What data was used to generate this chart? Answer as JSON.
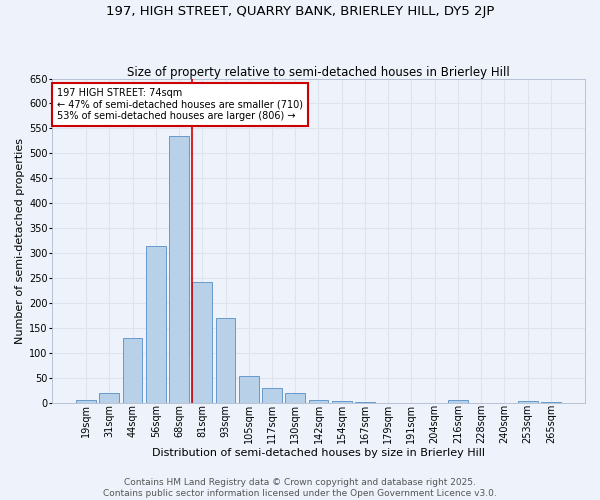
{
  "title": "197, HIGH STREET, QUARRY BANK, BRIERLEY HILL, DY5 2JP",
  "subtitle": "Size of property relative to semi-detached houses in Brierley Hill",
  "xlabel": "Distribution of semi-detached houses by size in Brierley Hill",
  "ylabel": "Number of semi-detached properties",
  "categories": [
    "19sqm",
    "31sqm",
    "44sqm",
    "56sqm",
    "68sqm",
    "81sqm",
    "93sqm",
    "105sqm",
    "117sqm",
    "130sqm",
    "142sqm",
    "154sqm",
    "167sqm",
    "179sqm",
    "191sqm",
    "204sqm",
    "216sqm",
    "228sqm",
    "240sqm",
    "253sqm",
    "265sqm"
  ],
  "values": [
    5,
    20,
    130,
    315,
    535,
    242,
    170,
    53,
    30,
    20,
    5,
    3,
    2,
    0,
    0,
    0,
    5,
    0,
    0,
    3,
    2
  ],
  "bar_color": "#b8d0e8",
  "bar_edge_color": "#6699cc",
  "grid_color": "#dde4f0",
  "background_color": "#edf2fb",
  "annotation_box_text": "197 HIGH STREET: 74sqm\n← 47% of semi-detached houses are smaller (710)\n53% of semi-detached houses are larger (806) →",
  "annotation_box_color": "#ffffff",
  "annotation_box_edge_color": "#cc0000",
  "vline_x": 4.57,
  "vline_color": "#cc0000",
  "ylim": [
    0,
    650
  ],
  "yticks": [
    0,
    50,
    100,
    150,
    200,
    250,
    300,
    350,
    400,
    450,
    500,
    550,
    600,
    650
  ],
  "footer_text": "Contains HM Land Registry data © Crown copyright and database right 2025.\nContains public sector information licensed under the Open Government Licence v3.0.",
  "title_fontsize": 9.5,
  "subtitle_fontsize": 8.5,
  "axis_label_fontsize": 8,
  "tick_fontsize": 7,
  "annotation_fontsize": 7,
  "footer_fontsize": 6.5
}
